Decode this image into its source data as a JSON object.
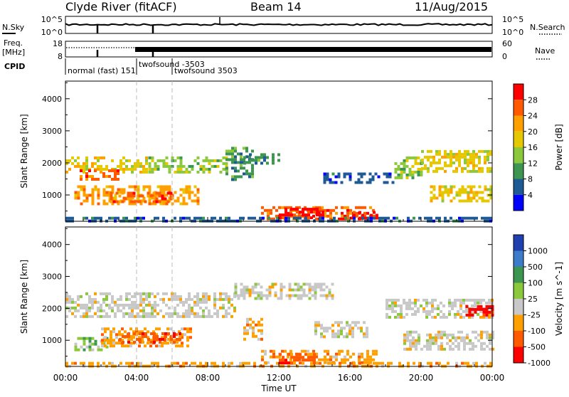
{
  "header": {
    "station": "Clyde River (fitACF)",
    "beam": "Beam 14",
    "date": "11/Aug/2015"
  },
  "top_panels": {
    "nsky_label": "N.Sky",
    "nsky_ticks": [
      "10^5",
      "10^0"
    ],
    "nsearch_label": "N.Search",
    "nsearch_ticks": [
      "10^5",
      "10^0"
    ],
    "freq_label": "Freq.",
    "freq_unit": "[MHz]",
    "freq_ticks": [
      "18",
      "8"
    ],
    "nave_label": "Nave",
    "nave_ticks": [
      "60",
      "0"
    ],
    "cpid_label": "CPID",
    "cpid_segments": [
      {
        "label": "normal (fast) 151",
        "start_h": 0.0
      },
      {
        "label": "twofsound -3503",
        "start_h": 4.0
      },
      {
        "label": "twofsound 3503",
        "start_h": 6.0
      }
    ]
  },
  "chart_data": [
    {
      "type": "heatmap",
      "panel": "power",
      "ylabel": "Slant Range [km]",
      "xlabel": "Time UT",
      "x_range_h": [
        0,
        24
      ],
      "ylim": [
        180,
        4550
      ],
      "yticks": [
        "1000",
        "2000",
        "3000",
        "4000"
      ],
      "xticks": [
        "00:00",
        "04:00",
        "08:00",
        "12:00",
        "16:00",
        "20:00",
        "00:00"
      ],
      "colorbar_label": "Power [dB]",
      "colorbar_ticks": [
        "28",
        "24",
        "20",
        "16",
        "12",
        "8",
        "4"
      ],
      "colorbar_colors": [
        "#ff0000",
        "#ff5a00",
        "#ffa000",
        "#e6c800",
        "#8cc83c",
        "#3c9650",
        "#1e5a96",
        "#0000ff"
      ],
      "echo_regions": [
        {
          "t0": 0.0,
          "t1": 4.5,
          "r0": 1700,
          "r1": 2200,
          "level": 3
        },
        {
          "t0": 4.5,
          "t1": 9.0,
          "r0": 1700,
          "r1": 2200,
          "level": 4
        },
        {
          "t0": 0.8,
          "t1": 3.0,
          "r0": 1500,
          "r1": 1800,
          "level": 1
        },
        {
          "t0": 0.5,
          "t1": 7.5,
          "r0": 700,
          "r1": 1300,
          "level": 2
        },
        {
          "t0": 2.5,
          "t1": 6.0,
          "r0": 800,
          "r1": 1100,
          "level": 1
        },
        {
          "t0": 9.0,
          "t1": 10.5,
          "r0": 1500,
          "r1": 2500,
          "level": 5
        },
        {
          "t0": 10.0,
          "t1": 12.0,
          "r0": 2000,
          "r1": 2300,
          "level": 5
        },
        {
          "t0": 11.0,
          "t1": 17.5,
          "r0": 280,
          "r1": 650,
          "level": 1
        },
        {
          "t0": 12.0,
          "t1": 14.5,
          "r0": 300,
          "r1": 600,
          "level": 0
        },
        {
          "t0": 16.0,
          "t1": 17.5,
          "r0": 320,
          "r1": 500,
          "level": 0
        },
        {
          "t0": 14.5,
          "t1": 18.5,
          "r0": 1400,
          "r1": 1700,
          "level": 6
        },
        {
          "t0": 18.5,
          "t1": 20.0,
          "r0": 1500,
          "r1": 2200,
          "level": 4
        },
        {
          "t0": 20.0,
          "t1": 24.0,
          "r0": 1700,
          "r1": 2400,
          "level": 3
        },
        {
          "t0": 20.5,
          "t1": 24.0,
          "r0": 800,
          "r1": 1300,
          "level": 3
        },
        {
          "t0": 0.0,
          "t1": 24.0,
          "r0": 180,
          "r1": 320,
          "level": 6
        }
      ]
    },
    {
      "type": "heatmap",
      "panel": "velocity",
      "ylabel": "Slant Range [km]",
      "xlabel": "Time UT",
      "x_range_h": [
        0,
        24
      ],
      "ylim": [
        180,
        4550
      ],
      "yticks": [
        "1000",
        "2000",
        "3000",
        "4000"
      ],
      "xticks": [
        "00:00",
        "04:00",
        "08:00",
        "12:00",
        "16:00",
        "20:00",
        "00:00"
      ],
      "colorbar_label": "Velocity [m s^-1]",
      "colorbar_ticks": [
        "1000",
        "500",
        "100",
        "25",
        "-25",
        "-100",
        "-500",
        "-1000"
      ],
      "colorbar_colors": [
        "#2040b0",
        "#3c7cc8",
        "#3c9650",
        "#8cc83c",
        "#c8c8c8",
        "#ffa000",
        "#ff5a00",
        "#ff0000"
      ],
      "echo_regions": [
        {
          "t0": 0.0,
          "t1": 9.5,
          "r0": 1700,
          "r1": 2500,
          "level": 4
        },
        {
          "t0": 9.5,
          "t1": 15.0,
          "r0": 2300,
          "r1": 2800,
          "level": 4
        },
        {
          "t0": 0.5,
          "t1": 2.5,
          "r0": 700,
          "r1": 1100,
          "level": 3
        },
        {
          "t0": 2.0,
          "t1": 7.0,
          "r0": 800,
          "r1": 1400,
          "level": 5
        },
        {
          "t0": 3.0,
          "t1": 6.5,
          "r0": 900,
          "r1": 1250,
          "level": 6
        },
        {
          "t0": 10.0,
          "t1": 11.0,
          "r0": 1000,
          "r1": 1700,
          "level": 5
        },
        {
          "t0": 11.0,
          "t1": 17.5,
          "r0": 280,
          "r1": 700,
          "level": 5
        },
        {
          "t0": 12.0,
          "t1": 14.0,
          "r0": 320,
          "r1": 600,
          "level": 6
        },
        {
          "t0": 14.0,
          "t1": 17.0,
          "r0": 1100,
          "r1": 1600,
          "level": 4
        },
        {
          "t0": 18.0,
          "t1": 24.0,
          "r0": 1700,
          "r1": 2300,
          "level": 4
        },
        {
          "t0": 22.5,
          "t1": 24.0,
          "r0": 1800,
          "r1": 2100,
          "level": 7
        },
        {
          "t0": 19.0,
          "t1": 24.0,
          "r0": 700,
          "r1": 1300,
          "level": 4
        },
        {
          "t0": 0.0,
          "t1": 24.0,
          "r0": 180,
          "r1": 320,
          "level": 5
        }
      ]
    }
  ]
}
